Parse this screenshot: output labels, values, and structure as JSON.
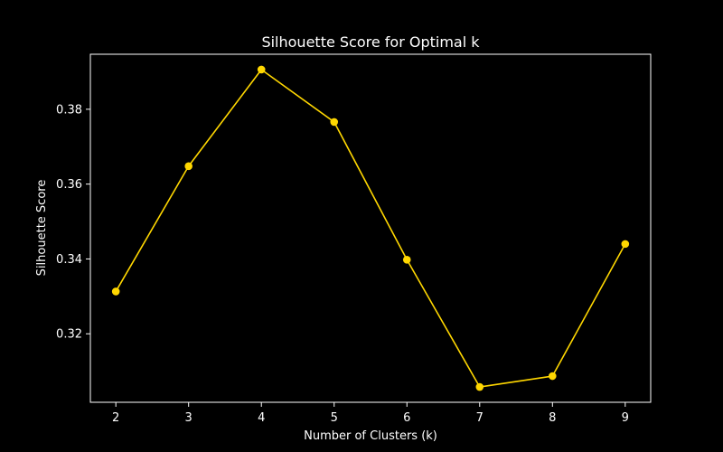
{
  "chart_data": {
    "type": "line",
    "title": "Silhouette Score for Optimal k",
    "xlabel": "Number of Clusters (k)",
    "ylabel": "Silhouette Score",
    "x": [
      2,
      3,
      4,
      5,
      6,
      7,
      8,
      9
    ],
    "x_ticks": [
      "2",
      "3",
      "4",
      "5",
      "6",
      "7",
      "8",
      "9"
    ],
    "y_ticks": [
      "0.32",
      "0.34",
      "0.36",
      "0.38"
    ],
    "xlim": [
      1.65,
      9.35
    ],
    "ylim": [
      0.3017,
      0.3947
    ],
    "series": [
      {
        "values": [
          0.3313,
          0.3648,
          0.3906,
          0.3766,
          0.3398,
          0.3058,
          0.3087,
          0.344
        ],
        "color": "#ffd700"
      }
    ],
    "grid": false,
    "legend": "none",
    "colors": {
      "background": "#000000",
      "foreground": "#ffffff",
      "line": "#ffd700"
    }
  }
}
